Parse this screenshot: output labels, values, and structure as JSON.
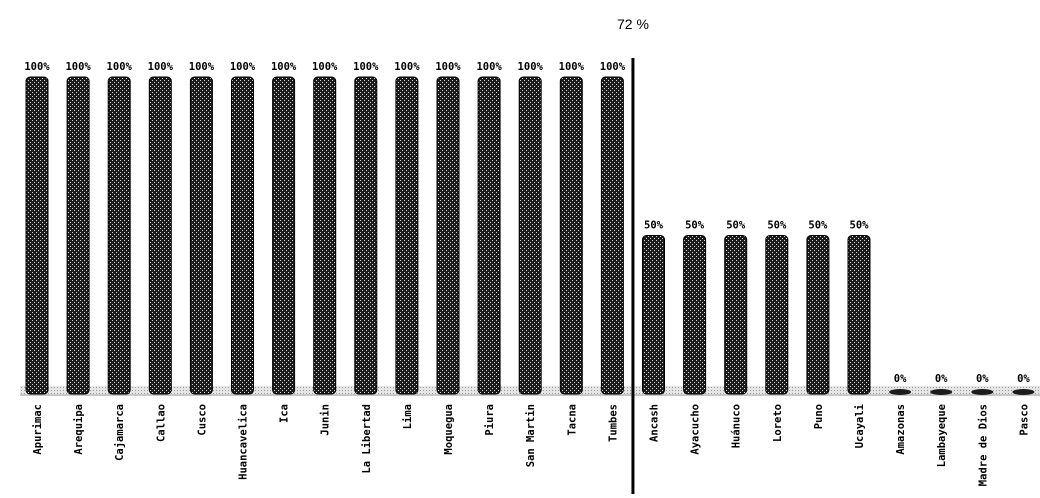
{
  "chart_data": {
    "type": "bar",
    "categories": [
      "Apurimac",
      "Arequipa",
      "Cajamarca",
      "Callao",
      "Cusco",
      "Huancavelica",
      "Ica",
      "Junin",
      "La Libertad",
      "Lima",
      "Moquegua",
      "Piura",
      "San Martin",
      "Tacna",
      "Tumbes",
      "Ancash",
      "Ayacucho",
      "Huánuco",
      "Loreto",
      "Puno",
      "Ucayali",
      "Amazonas",
      "Lambayeque",
      "Madre de Dios",
      "Pasco"
    ],
    "values": [
      100,
      100,
      100,
      100,
      100,
      100,
      100,
      100,
      100,
      100,
      100,
      100,
      100,
      100,
      100,
      50,
      50,
      50,
      50,
      50,
      50,
      0,
      0,
      0,
      0
    ],
    "value_labels": [
      "100%",
      "100%",
      "100%",
      "100%",
      "100%",
      "100%",
      "100%",
      "100%",
      "100%",
      "100%",
      "100%",
      "100%",
      "100%",
      "100%",
      "100%",
      "50%",
      "50%",
      "50%",
      "50%",
      "50%",
      "50%",
      "0%",
      "0%",
      "0%",
      "0%"
    ],
    "ylim": [
      0,
      100
    ],
    "average_marker": {
      "label": "72 %",
      "between": [
        "Tumbes",
        "Ancash"
      ]
    },
    "colors": {
      "bar": "#1c1c1c",
      "bar_texture": "#d8d8d8",
      "baseline": "#c8c8c8",
      "axis": "#000000"
    },
    "grid": false,
    "legend": "none",
    "title": "",
    "xlabel": "",
    "ylabel": ""
  }
}
